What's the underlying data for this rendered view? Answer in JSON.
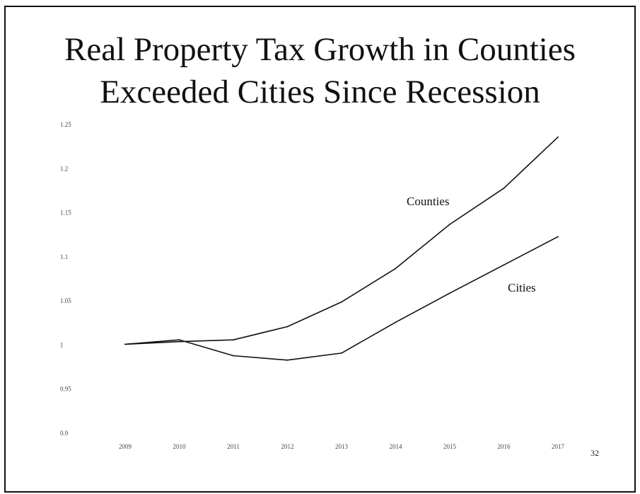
{
  "slide": {
    "title_line1": "Real Property Tax Growth in Counties",
    "title_line2": "Exceeded Cities Since Recession",
    "page_number": "32"
  },
  "chart_data": {
    "type": "line",
    "title": "Real Property Tax Growth in Counties Exceeded Cities Since Recession",
    "xlabel": "",
    "ylabel": "",
    "x": [
      "2009",
      "2010",
      "2011",
      "2012",
      "2013",
      "2014",
      "2015",
      "2016",
      "2017"
    ],
    "ylim": [
      0.9,
      1.25
    ],
    "yticks": [
      0.9,
      0.95,
      1.0,
      1.05,
      1.1,
      1.15,
      1.2,
      1.25
    ],
    "ytick_labels": [
      "0.9",
      "0.95",
      "1",
      "1.05",
      "1.1",
      "1.15",
      "1.2",
      "1.25"
    ],
    "grid": false,
    "legend": "inline labels",
    "series": [
      {
        "name": "Counties",
        "values": [
          1.0,
          1.003,
          1.005,
          1.02,
          1.048,
          1.086,
          1.136,
          1.177,
          1.235
        ],
        "color": "#111111"
      },
      {
        "name": "Cities",
        "values": [
          1.0,
          1.005,
          0.987,
          0.982,
          0.99,
          1.025,
          1.058,
          1.09,
          1.122
        ],
        "color": "#111111"
      }
    ]
  }
}
